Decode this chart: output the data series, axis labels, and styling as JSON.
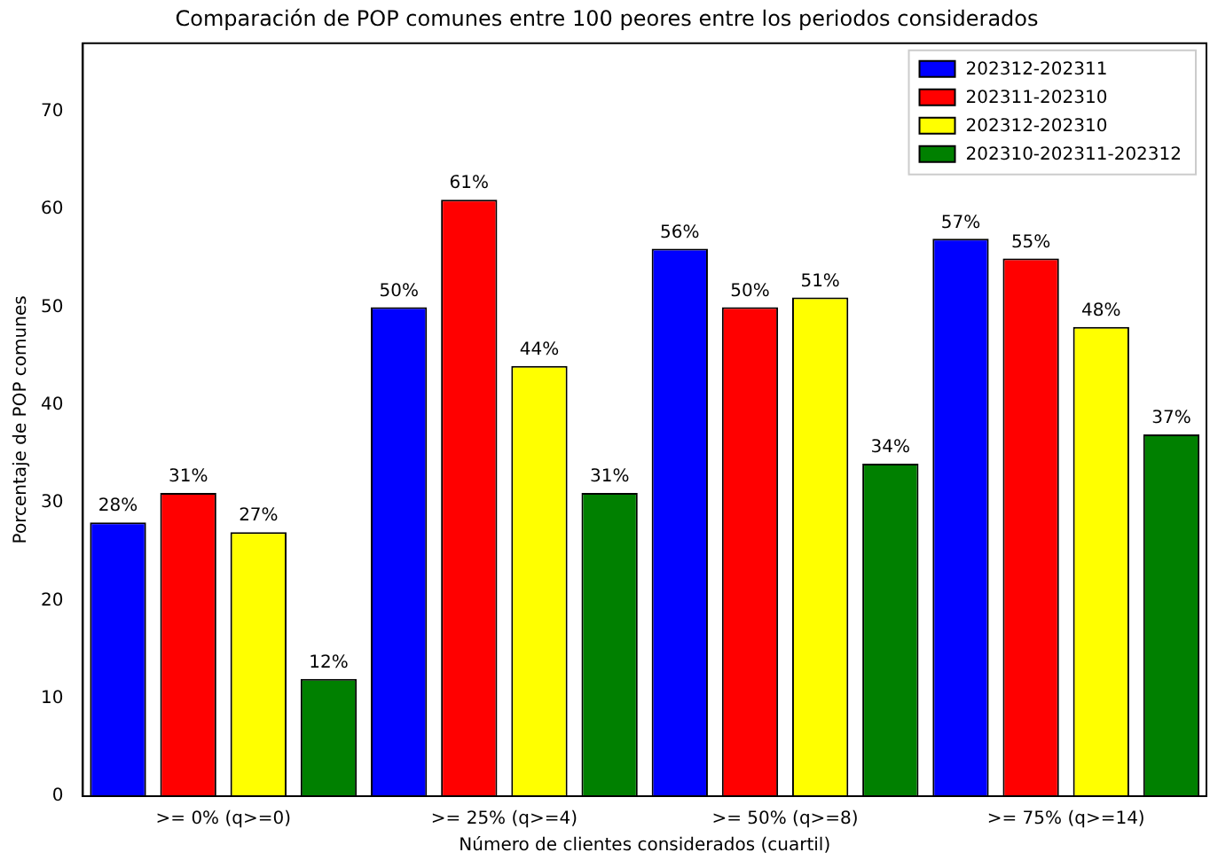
{
  "chart_data": {
    "type": "bar",
    "title": "Comparación de POP comunes entre 100 peores entre los periodos considerados",
    "xlabel": "Número de clientes considerados (cuartil)",
    "ylabel": "Porcentaje de POP comunes",
    "categories": [
      ">= 0% (q>=0)",
      ">= 25% (q>=4)",
      ">= 50% (q>=8)",
      ">= 75% (q>=14)"
    ],
    "series": [
      {
        "name": "202312-202311",
        "color": "#0000ff",
        "values": [
          28,
          50,
          56,
          57
        ],
        "value_labels": [
          "28%",
          "50%",
          "56%",
          "57%"
        ]
      },
      {
        "name": "202311-202310",
        "color": "#ff0000",
        "values": [
          31,
          61,
          50,
          55
        ],
        "value_labels": [
          "31%",
          "61%",
          "50%",
          "55%"
        ]
      },
      {
        "name": "202312-202310",
        "color": "#ffff00",
        "values": [
          27,
          44,
          51,
          48
        ],
        "value_labels": [
          "27%",
          "44%",
          "51%",
          "48%"
        ]
      },
      {
        "name": "202310-202311-202312",
        "color": "#008000",
        "values": [
          12,
          31,
          34,
          37
        ],
        "value_labels": [
          "12%",
          "31%",
          "34%",
          "37%"
        ]
      }
    ],
    "ylim": [
      0,
      77
    ],
    "yticks": [
      0,
      10,
      20,
      30,
      40,
      50,
      60,
      70
    ],
    "grid": false,
    "legend": "top right"
  }
}
